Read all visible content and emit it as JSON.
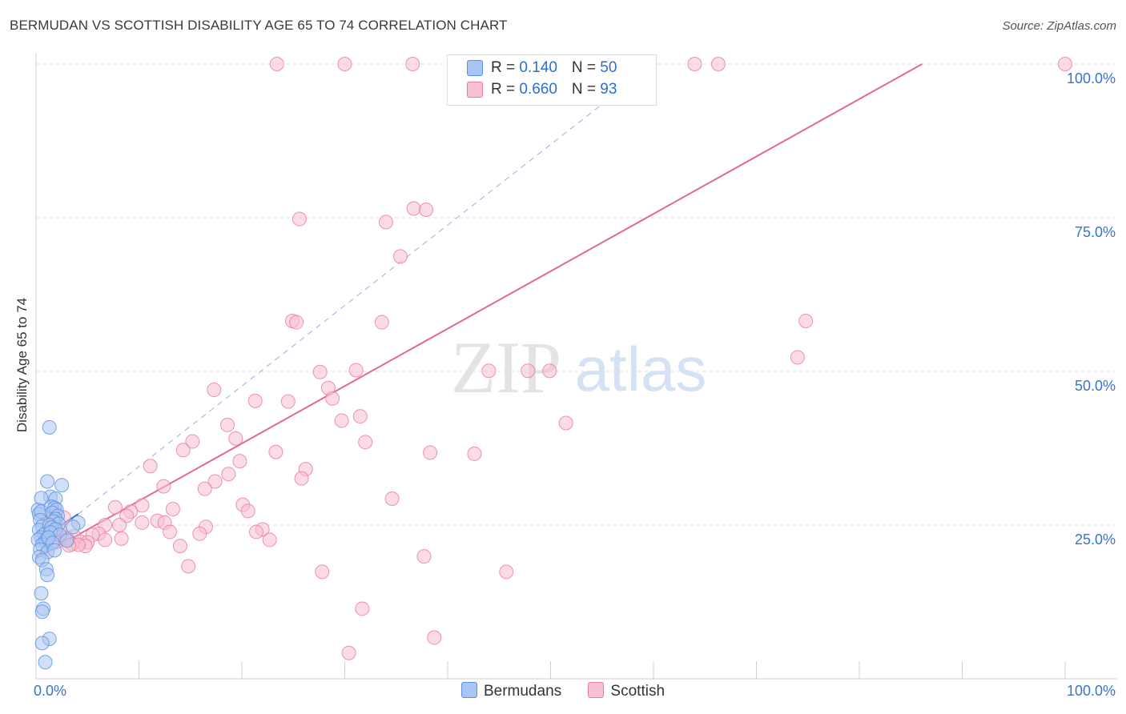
{
  "title": "BERMUDAN VS SCOTTISH DISABILITY AGE 65 TO 74 CORRELATION CHART",
  "source": "Source: ZipAtlas.com",
  "watermark": {
    "zip": "ZIP",
    "atlas": "atlas"
  },
  "legend": {
    "rows": [
      {
        "r_label": "R = ",
        "r_value": "0.140",
        "n_label": "N = ",
        "n_value": "50"
      },
      {
        "r_label": "R = ",
        "r_value": "0.660",
        "n_label": "N = ",
        "n_value": "93"
      }
    ]
  },
  "bottom_legend": {
    "items": [
      "Bermudans",
      "Scottish"
    ]
  },
  "chart_data": {
    "type": "scatter",
    "ylabel": "Disability Age 65 to 74",
    "xlim": [
      0,
      100
    ],
    "ylim": [
      0,
      100
    ],
    "x_tick_labels": [
      "0.0%",
      "100.0%"
    ],
    "y_ticks": [
      25,
      50,
      75,
      100
    ],
    "y_tick_labels": [
      "25.0%",
      "50.0%",
      "75.0%",
      "100.0%"
    ],
    "grid": true,
    "legend_position": "top-center",
    "colors": {
      "bermudans": "#5b8fe0",
      "bermudans_fill": "#a9c6f2",
      "scottish": "#e97b9c",
      "scottish_fill": "#f7bfd0",
      "scottish_line": "#e06a93",
      "blue_line": "#2f6fd0",
      "label_blue": "#3a73c9"
    },
    "series": [
      {
        "name": "Bermudans",
        "points": [
          [
            0.2,
            27.5
          ],
          [
            0.3,
            26.8
          ],
          [
            0.5,
            27.2
          ],
          [
            0.4,
            25.8
          ],
          [
            0.6,
            24.8
          ],
          [
            0.3,
            24.2
          ],
          [
            0.8,
            23.5
          ],
          [
            0.5,
            23.0
          ],
          [
            0.2,
            22.6
          ],
          [
            0.9,
            22.4
          ],
          [
            1.0,
            22.2
          ],
          [
            1.2,
            22.9
          ],
          [
            0.6,
            21.8
          ],
          [
            0.4,
            21.0
          ],
          [
            1.1,
            20.6
          ],
          [
            0.3,
            19.8
          ],
          [
            0.6,
            19.3
          ],
          [
            1.0,
            17.8
          ],
          [
            1.1,
            16.9
          ],
          [
            0.5,
            13.9
          ],
          [
            0.7,
            11.4
          ],
          [
            0.6,
            10.9
          ],
          [
            1.3,
            6.5
          ],
          [
            0.6,
            5.8
          ],
          [
            0.9,
            2.7
          ],
          [
            1.3,
            40.9
          ],
          [
            1.1,
            32.1
          ],
          [
            2.5,
            31.5
          ],
          [
            1.4,
            29.6
          ],
          [
            0.5,
            29.4
          ],
          [
            1.9,
            29.3
          ],
          [
            1.5,
            28.0
          ],
          [
            1.8,
            27.8
          ],
          [
            2.0,
            27.5
          ],
          [
            1.6,
            27.0
          ],
          [
            2.1,
            26.5
          ],
          [
            1.9,
            26.0
          ],
          [
            1.7,
            25.6
          ],
          [
            2.2,
            25.2
          ],
          [
            1.3,
            25.0
          ],
          [
            1.5,
            24.6
          ],
          [
            1.9,
            24.3
          ],
          [
            1.4,
            23.8
          ],
          [
            2.3,
            23.4
          ],
          [
            1.2,
            23.0
          ],
          [
            3.0,
            22.5
          ],
          [
            1.6,
            22.1
          ],
          [
            4.1,
            25.4
          ],
          [
            3.6,
            24.7
          ],
          [
            1.8,
            20.9
          ]
        ]
      },
      {
        "name": "Scottish",
        "points": [
          [
            23.4,
            100
          ],
          [
            30.0,
            100
          ],
          [
            36.6,
            100
          ],
          [
            49.0,
            100
          ],
          [
            64.0,
            100
          ],
          [
            66.3,
            100
          ],
          [
            100,
            100
          ],
          [
            25.6,
            74.8
          ],
          [
            34.0,
            74.3
          ],
          [
            36.7,
            76.5
          ],
          [
            37.9,
            76.3
          ],
          [
            35.4,
            68.7
          ],
          [
            24.9,
            58.2
          ],
          [
            25.3,
            58.0
          ],
          [
            33.6,
            58.0
          ],
          [
            74.8,
            58.2
          ],
          [
            74.0,
            52.3
          ],
          [
            27.6,
            49.9
          ],
          [
            31.1,
            50.2
          ],
          [
            44.0,
            50.1
          ],
          [
            47.8,
            50.1
          ],
          [
            49.9,
            50.1
          ],
          [
            17.3,
            47.0
          ],
          [
            28.4,
            47.3
          ],
          [
            21.3,
            45.2
          ],
          [
            24.5,
            45.1
          ],
          [
            28.8,
            45.6
          ],
          [
            29.7,
            42.0
          ],
          [
            31.5,
            42.7
          ],
          [
            51.5,
            41.6
          ],
          [
            18.6,
            41.3
          ],
          [
            19.4,
            39.1
          ],
          [
            15.2,
            38.6
          ],
          [
            32.0,
            38.5
          ],
          [
            14.3,
            37.2
          ],
          [
            23.3,
            36.9
          ],
          [
            38.3,
            36.8
          ],
          [
            42.6,
            36.6
          ],
          [
            11.1,
            34.6
          ],
          [
            19.8,
            35.4
          ],
          [
            26.2,
            34.1
          ],
          [
            18.7,
            33.3
          ],
          [
            25.8,
            32.6
          ],
          [
            17.4,
            32.1
          ],
          [
            12.4,
            31.3
          ],
          [
            16.4,
            30.9
          ],
          [
            34.6,
            29.3
          ],
          [
            20.1,
            28.3
          ],
          [
            10.3,
            28.2
          ],
          [
            7.7,
            27.9
          ],
          [
            20.6,
            27.3
          ],
          [
            9.2,
            27.2
          ],
          [
            13.3,
            27.6
          ],
          [
            8.8,
            26.5
          ],
          [
            11.8,
            25.7
          ],
          [
            12.5,
            25.4
          ],
          [
            10.3,
            25.4
          ],
          [
            8.1,
            25.0
          ],
          [
            6.7,
            25.0
          ],
          [
            16.5,
            24.7
          ],
          [
            22.0,
            24.3
          ],
          [
            13.0,
            23.9
          ],
          [
            15.9,
            23.6
          ],
          [
            21.4,
            23.9
          ],
          [
            6.1,
            23.6
          ],
          [
            5.5,
            23.4
          ],
          [
            3.7,
            23.2
          ],
          [
            2.5,
            23.0
          ],
          [
            3.0,
            22.8
          ],
          [
            6.7,
            22.6
          ],
          [
            4.3,
            22.3
          ],
          [
            2.0,
            22.3
          ],
          [
            8.3,
            22.8
          ],
          [
            5.0,
            22.2
          ],
          [
            3.5,
            21.9
          ],
          [
            14.0,
            21.6
          ],
          [
            4.8,
            21.6
          ],
          [
            4.1,
            21.8
          ],
          [
            3.2,
            21.7
          ],
          [
            22.7,
            22.6
          ],
          [
            2.7,
            26.2
          ],
          [
            2.3,
            24.1
          ],
          [
            1.5,
            25.8
          ],
          [
            1.9,
            27.1
          ],
          [
            1.2,
            26.0
          ],
          [
            1.7,
            23.5
          ],
          [
            37.7,
            19.9
          ],
          [
            14.8,
            18.3
          ],
          [
            27.8,
            17.4
          ],
          [
            45.7,
            17.4
          ],
          [
            31.7,
            11.4
          ],
          [
            38.7,
            6.7
          ],
          [
            30.4,
            4.2
          ]
        ]
      }
    ],
    "trend_lines": [
      {
        "series": "Bermudans",
        "style": "solid",
        "from": [
          0,
          22.4
        ],
        "to": [
          4.1,
          26.8
        ]
      },
      {
        "series": "Bermudans",
        "style": "dashed",
        "from": [
          4.1,
          26.8
        ],
        "to": [
          60.0,
          100
        ]
      },
      {
        "series": "Scottish",
        "style": "solid",
        "from": [
          0,
          19.6
        ],
        "to": [
          86.1,
          100
        ]
      }
    ]
  }
}
